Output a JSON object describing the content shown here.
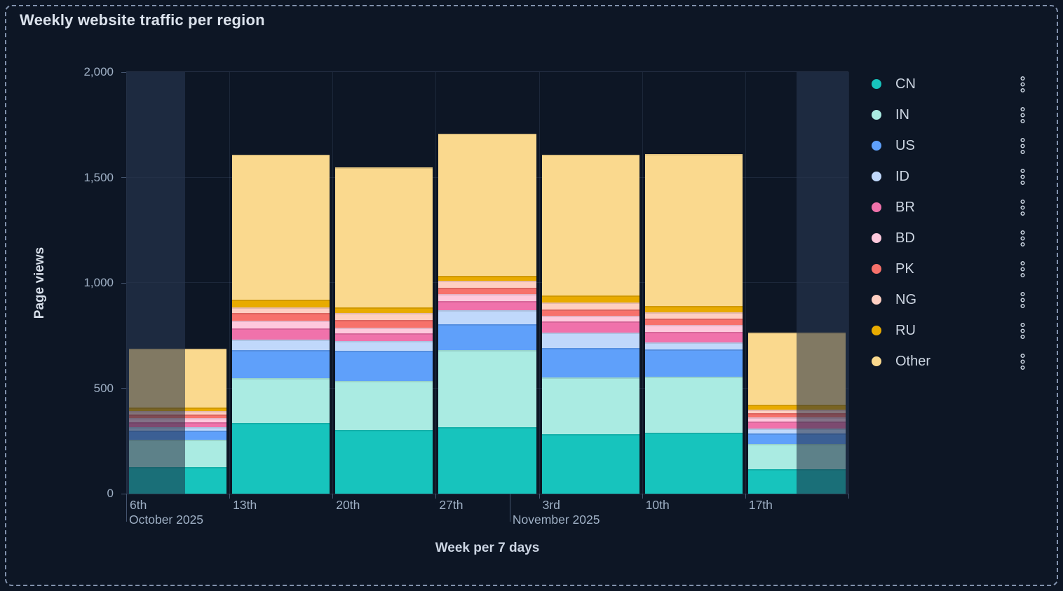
{
  "panel": {
    "title": "Weekly website traffic per region"
  },
  "chart_data": {
    "type": "bar",
    "stacked": true,
    "title": "Weekly website traffic per region",
    "xlabel": "Week per 7 days",
    "ylabel": "Page views",
    "ylim": [
      0,
      2000
    ],
    "yticks": [
      0,
      500,
      1000,
      1500,
      2000
    ],
    "ytick_labels": [
      "0",
      "500",
      "1,000",
      "1,500",
      "2,000"
    ],
    "grid": true,
    "legend_position": "right",
    "categories": [
      "6th",
      "13th",
      "20th",
      "27th",
      "3rd",
      "10th",
      "17th"
    ],
    "month_labels": [
      {
        "text": "October 2025",
        "x_frac": 0.0
      },
      {
        "text": "November 2025",
        "x_frac": 0.531
      }
    ],
    "series": [
      {
        "name": "CN",
        "color": "#17c4bd",
        "values": [
          127,
          335,
          302,
          316,
          282,
          290,
          116
        ]
      },
      {
        "name": "IN",
        "color": "#aaebe2",
        "values": [
          128,
          213,
          233,
          365,
          268,
          264,
          119
        ]
      },
      {
        "name": "US",
        "color": "#5fa0fa",
        "values": [
          44,
          134,
          143,
          122,
          142,
          131,
          50
        ]
      },
      {
        "name": "ID",
        "color": "#c0d8fb",
        "values": [
          17,
          49,
          47,
          69,
          72,
          33,
          25
        ]
      },
      {
        "name": "BR",
        "color": "#f072ab",
        "values": [
          22,
          54,
          36,
          42,
          52,
          49,
          33
        ]
      },
      {
        "name": "BD",
        "color": "#fec9dd",
        "values": [
          22,
          35,
          25,
          33,
          29,
          33,
          19
        ]
      },
      {
        "name": "PK",
        "color": "#f7716b",
        "values": [
          16,
          37,
          39,
          31,
          30,
          30,
          20
        ]
      },
      {
        "name": "NG",
        "color": "#fecfc2",
        "values": [
          17,
          28,
          33,
          33,
          31,
          30,
          17
        ]
      },
      {
        "name": "RU",
        "color": "#e8ab00",
        "values": [
          17,
          36,
          25,
          23,
          35,
          31,
          22
        ]
      },
      {
        "name": "Other",
        "color": "#fad98e",
        "values": [
          277,
          688,
          665,
          674,
          667,
          720,
          343
        ]
      }
    ],
    "bar_totals": [
      687,
      1609,
      1548,
      1708,
      1608,
      1611,
      764
    ],
    "dimmed_selection": {
      "left_cover_end_bar_fraction": 0.57,
      "right_cover_start_bar_fraction": 0.5
    }
  },
  "colors": {
    "panel_bg": "#0d1625",
    "dim_strip_bg": "#1e2a40",
    "tick_text": "#9fb0c5",
    "axis_title_text": "#d6dee9",
    "legend_text": "#ccd5e1",
    "frame_dash": "#8191ac"
  }
}
